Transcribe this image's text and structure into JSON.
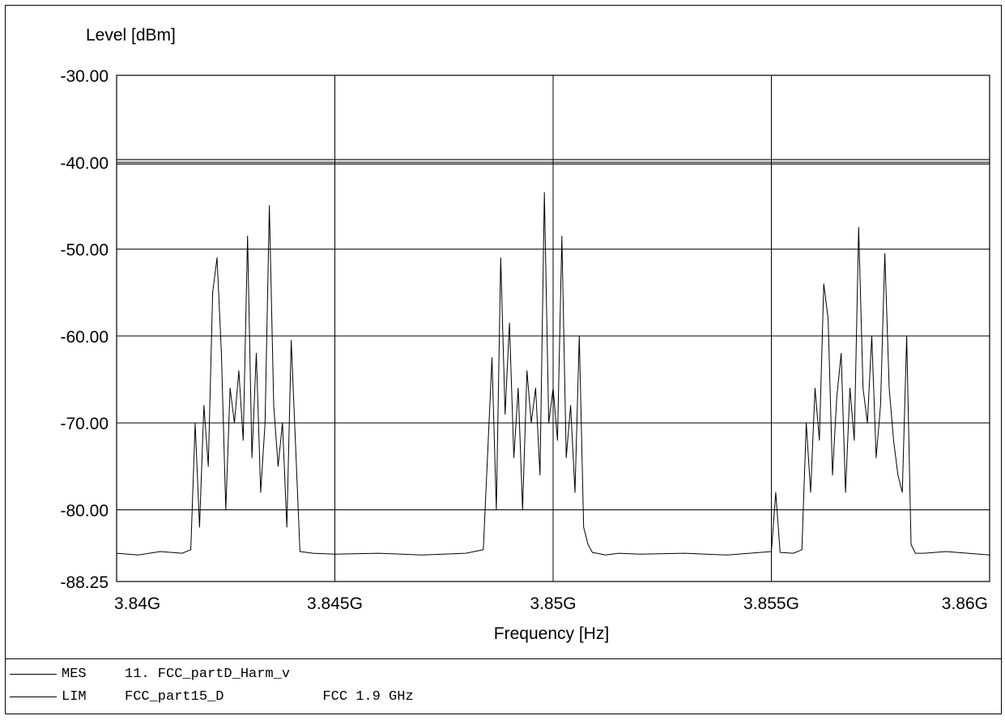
{
  "chart_data": {
    "type": "line",
    "ylabel": "Level [dBm]",
    "xlabel": "Frequency [Hz]",
    "xlim": [
      3840000000,
      3860000000
    ],
    "ylim": [
      -88.25,
      -30.0
    ],
    "y_ticks": [
      -30.0,
      -40.0,
      -50.0,
      -60.0,
      -70.0,
      -80.0,
      -88.25
    ],
    "y_tick_labels": [
      "-30.00",
      "-40.00",
      "-50.00",
      "-60.00",
      "-70.00",
      "-80.00",
      "-88.25"
    ],
    "x_ticks": [
      3840000000,
      3845000000,
      3850000000,
      3855000000,
      3860000000
    ],
    "x_tick_labels": [
      "3.84G",
      "3.845G",
      "3.85G",
      "3.855G",
      "3.86G"
    ],
    "grid": true,
    "limit_lines": [
      -39.7,
      -40.2
    ],
    "series": [
      {
        "x": [
          3840000000,
          3840500000,
          3841000000,
          3841500000,
          3841700000,
          3841800000,
          3841900000,
          3842000000,
          3842100000,
          3842200000,
          3842300000,
          3842400000,
          3842500000,
          3842600000,
          3842700000,
          3842800000,
          3842900000,
          3843000000,
          3843100000,
          3843200000,
          3843300000,
          3843400000,
          3843500000,
          3843600000,
          3843700000,
          3843800000,
          3843900000,
          3844000000,
          3844200000,
          3844500000,
          3845000000,
          3846000000,
          3847000000,
          3848000000,
          3848400000,
          3848600000,
          3848700000,
          3848800000,
          3848900000,
          3849000000,
          3849100000,
          3849200000,
          3849300000,
          3849400000,
          3849500000,
          3849600000,
          3849700000,
          3849800000,
          3849900000,
          3850000000,
          3850100000,
          3850200000,
          3850300000,
          3850400000,
          3850500000,
          3850600000,
          3850700000,
          3850800000,
          3850900000,
          3851000000,
          3851200000,
          3851500000,
          3852000000,
          3853000000,
          3854000000,
          3855000000,
          3855100000,
          3855200000,
          3855500000,
          3855700000,
          3855800000,
          3855900000,
          3856000000,
          3856100000,
          3856200000,
          3856300000,
          3856400000,
          3856500000,
          3856600000,
          3856700000,
          3856800000,
          3856900000,
          3857000000,
          3857100000,
          3857200000,
          3857300000,
          3857400000,
          3857500000,
          3857600000,
          3857700000,
          3857800000,
          3857900000,
          3858000000,
          3858100000,
          3858200000,
          3858300000,
          3858500000,
          3859000000,
          3859500000,
          3860000000
        ],
        "values": [
          -85.0,
          -85.2,
          -84.8,
          -85.0,
          -84.6,
          -70.0,
          -82.0,
          -68.0,
          -75.0,
          -55.0,
          -51.0,
          -62.0,
          -80.0,
          -66.0,
          -70.0,
          -64.0,
          -72.0,
          -48.5,
          -74.0,
          -62.0,
          -78.0,
          -70.0,
          -45.0,
          -68.0,
          -75.0,
          -70.0,
          -82.0,
          -60.5,
          -84.8,
          -85.0,
          -85.1,
          -85.0,
          -85.2,
          -85.0,
          -84.6,
          -62.5,
          -80.0,
          -51.0,
          -69.0,
          -58.5,
          -74.0,
          -66.0,
          -80.0,
          -64.0,
          -70.0,
          -66.0,
          -76.0,
          -43.5,
          -70.0,
          -66.0,
          -72.0,
          -48.5,
          -74.0,
          -68.0,
          -78.0,
          -60.0,
          -82.0,
          -84.0,
          -84.9,
          -85.0,
          -85.2,
          -85.0,
          -85.1,
          -85.0,
          -85.2,
          -84.8,
          -78.0,
          -84.9,
          -85.0,
          -84.6,
          -70.0,
          -78.0,
          -66.0,
          -72.0,
          -54.0,
          -58.0,
          -76.0,
          -67.0,
          -62.0,
          -78.0,
          -66.0,
          -72.0,
          -47.5,
          -66.0,
          -70.0,
          -60.0,
          -74.0,
          -68.0,
          -50.5,
          -66.0,
          -72.0,
          -76.0,
          -78.0,
          -60.0,
          -84.0,
          -85.0,
          -85.0,
          -84.8,
          -85.0,
          -85.2
        ]
      }
    ]
  },
  "legend": {
    "items": [
      {
        "code": "MES",
        "name": "11. FCC_partD_Harm_v",
        "extra": ""
      },
      {
        "code": "LIM",
        "name": "FCC_part15_D",
        "extra": "FCC 1.9 GHz"
      }
    ]
  }
}
